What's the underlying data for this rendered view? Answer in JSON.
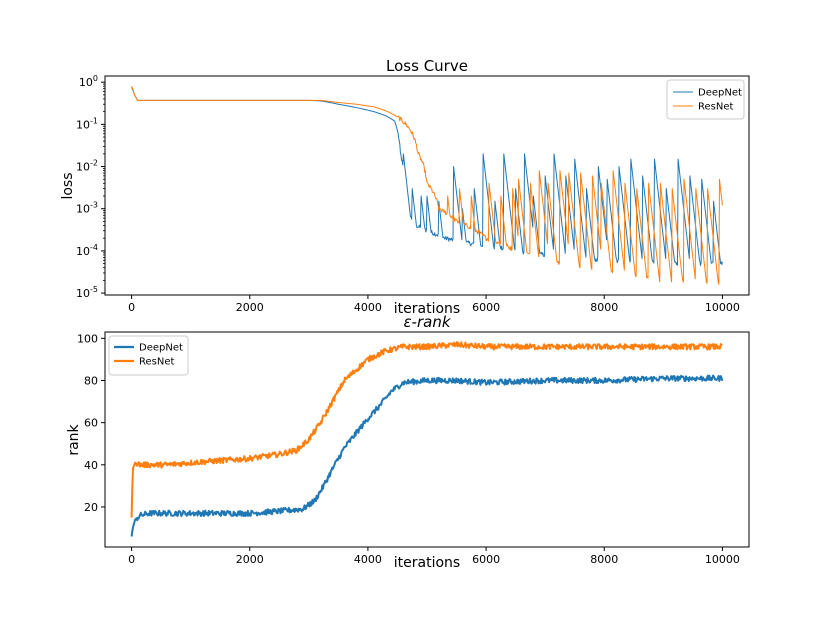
{
  "chart_data": [
    {
      "type": "line",
      "title": "Loss Curve",
      "xlabel": "iterations",
      "ylabel": "loss",
      "yscale": "log",
      "xlim": [
        -450,
        10450
      ],
      "ylim": [
        9e-06,
        1.4
      ],
      "xticks": [
        0,
        2000,
        4000,
        6000,
        8000,
        10000
      ],
      "xtick_labels": [
        "0",
        "2000",
        "4000",
        "6000",
        "8000",
        "10000"
      ],
      "yticks": [
        1,
        0.1,
        0.01,
        0.001,
        0.0001,
        1e-05
      ],
      "ytick_labels": [
        {
          "base": "10",
          "exp": "0"
        },
        {
          "base": "10",
          "exp": "-1"
        },
        {
          "base": "10",
          "exp": "-2"
        },
        {
          "base": "10",
          "exp": "-3"
        },
        {
          "base": "10",
          "exp": "-4"
        },
        {
          "base": "10",
          "exp": "-5"
        }
      ],
      "legend_position": "top-right",
      "series": [
        {
          "name": "DeepNet",
          "color": "#1f77b4",
          "x": [
            0,
            50,
            100,
            3000,
            3200,
            3500,
            3800,
            4100,
            4300,
            4450,
            4550,
            4620,
            4700,
            4800,
            5000,
            5300,
            5600,
            6000,
            6500,
            7000,
            7500,
            8000,
            8500,
            9000,
            9500,
            9900,
            10000
          ],
          "y": [
            0.75,
            0.5,
            0.37,
            0.37,
            0.36,
            0.3,
            0.25,
            0.2,
            0.16,
            0.12,
            0.02,
            0.003,
            0.0007,
            0.0004,
            0.0003,
            0.0002,
            0.00016,
            0.00013,
            0.0001,
            8e-05,
            7e-05,
            6e-05,
            5.5e-05,
            5e-05,
            5e-05,
            5e-05,
            5e-05
          ],
          "spikes": [
            {
              "x": 4600,
              "y": 0.02
            },
            {
              "x": 4750,
              "y": 0.003
            },
            {
              "x": 4900,
              "y": 0.002
            },
            {
              "x": 5000,
              "y": 0.002
            },
            {
              "x": 5200,
              "y": 0.0015
            },
            {
              "x": 5450,
              "y": 0.01
            },
            {
              "x": 5600,
              "y": 0.001
            },
            {
              "x": 5800,
              "y": 0.003
            },
            {
              "x": 5950,
              "y": 0.02
            },
            {
              "x": 6150,
              "y": 0.0015
            },
            {
              "x": 6300,
              "y": 0.02
            },
            {
              "x": 6500,
              "y": 0.003
            },
            {
              "x": 6650,
              "y": 0.02
            },
            {
              "x": 6800,
              "y": 0.002
            },
            {
              "x": 7000,
              "y": 0.006
            },
            {
              "x": 7150,
              "y": 0.02
            },
            {
              "x": 7350,
              "y": 0.006
            },
            {
              "x": 7500,
              "y": 0.015
            },
            {
              "x": 7700,
              "y": 0.003
            },
            {
              "x": 7900,
              "y": 0.01
            },
            {
              "x": 8050,
              "y": 0.005
            },
            {
              "x": 8250,
              "y": 0.01
            },
            {
              "x": 8450,
              "y": 0.015
            },
            {
              "x": 8650,
              "y": 0.006
            },
            {
              "x": 8850,
              "y": 0.015
            },
            {
              "x": 9050,
              "y": 0.003
            },
            {
              "x": 9250,
              "y": 0.015
            },
            {
              "x": 9450,
              "y": 0.006
            },
            {
              "x": 9650,
              "y": 0.005
            },
            {
              "x": 9850,
              "y": 0.0015
            }
          ]
        },
        {
          "name": "ResNet",
          "color": "#ff7f0e",
          "x": [
            0,
            50,
            100,
            3000,
            3200,
            3500,
            3800,
            4100,
            4300,
            4500,
            4700,
            4850,
            5000,
            5200,
            5500,
            6000,
            6500,
            7000,
            7500,
            8000,
            8500,
            9000,
            9500,
            10000
          ],
          "y": [
            0.8,
            0.5,
            0.37,
            0.37,
            0.37,
            0.33,
            0.3,
            0.26,
            0.21,
            0.15,
            0.08,
            0.02,
            0.004,
            0.001,
            0.0005,
            0.0002,
            0.0001,
            6e-05,
            4e-05,
            3.5e-05,
            2.5e-05,
            2e-05,
            1.8e-05,
            1.5e-05
          ],
          "spikes": [
            {
              "x": 5350,
              "y": 0.002
            },
            {
              "x": 5550,
              "y": 0.003
            },
            {
              "x": 5750,
              "y": 0.002
            },
            {
              "x": 6050,
              "y": 0.004
            },
            {
              "x": 6250,
              "y": 0.002
            },
            {
              "x": 6450,
              "y": 0.003
            },
            {
              "x": 6550,
              "y": 0.005
            },
            {
              "x": 6750,
              "y": 0.004
            },
            {
              "x": 6900,
              "y": 0.008
            },
            {
              "x": 7050,
              "y": 0.004
            },
            {
              "x": 7250,
              "y": 0.008
            },
            {
              "x": 7400,
              "y": 0.007
            },
            {
              "x": 7600,
              "y": 0.007
            },
            {
              "x": 7800,
              "y": 0.006
            },
            {
              "x": 7950,
              "y": 0.004
            },
            {
              "x": 8150,
              "y": 0.008
            },
            {
              "x": 8350,
              "y": 0.004
            },
            {
              "x": 8550,
              "y": 0.003
            },
            {
              "x": 8750,
              "y": 0.004
            },
            {
              "x": 8950,
              "y": 0.004
            },
            {
              "x": 9150,
              "y": 0.003
            },
            {
              "x": 9350,
              "y": 0.005
            },
            {
              "x": 9550,
              "y": 0.003
            },
            {
              "x": 9750,
              "y": 0.003
            },
            {
              "x": 9950,
              "y": 0.005
            }
          ]
        }
      ]
    },
    {
      "type": "line",
      "title": "ε-rank",
      "xlabel": "iterations",
      "ylabel": "rank",
      "xlim": [
        -450,
        10450
      ],
      "ylim": [
        1,
        103
      ],
      "xticks": [
        0,
        2000,
        4000,
        6000,
        8000,
        10000
      ],
      "xtick_labels": [
        "0",
        "2000",
        "4000",
        "6000",
        "8000",
        "10000"
      ],
      "yticks": [
        20,
        40,
        60,
        80,
        100
      ],
      "ytick_labels": [
        "20",
        "40",
        "60",
        "80",
        "100"
      ],
      "legend_position": "top-left",
      "series": [
        {
          "name": "DeepNet",
          "color": "#1f77b4",
          "x": [
            0,
            20,
            60,
            150,
            300,
            600,
            1000,
            1500,
            2000,
            2500,
            2900,
            3100,
            3250,
            3400,
            3600,
            3800,
            4000,
            4200,
            4400,
            4600,
            5000,
            5500,
            6000,
            7000,
            8000,
            9000,
            10000
          ],
          "y": [
            6,
            10,
            14,
            16,
            17,
            17,
            17,
            17,
            17,
            18,
            19,
            23,
            30,
            38,
            48,
            55,
            62,
            68,
            75,
            79,
            80,
            80,
            79,
            80,
            80,
            81,
            81
          ]
        },
        {
          "name": "ResNet",
          "color": "#ff7f0e",
          "x": [
            0,
            20,
            60,
            150,
            300,
            600,
            1000,
            1500,
            2000,
            2500,
            2800,
            3000,
            3200,
            3400,
            3600,
            3800,
            4000,
            4300,
            4600,
            5000,
            5500,
            6000,
            7000,
            8000,
            9000,
            10000
          ],
          "y": [
            15,
            38,
            41,
            40,
            40,
            40,
            41,
            42,
            43,
            45,
            47,
            52,
            60,
            70,
            80,
            85,
            90,
            94,
            96,
            96,
            97,
            96,
            96,
            96,
            96,
            96
          ]
        }
      ]
    }
  ]
}
